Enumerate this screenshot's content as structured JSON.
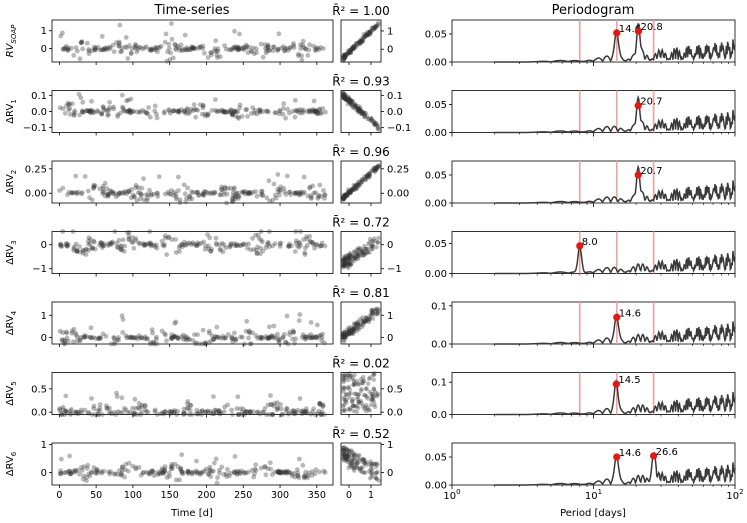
{
  "headers": {
    "timeseries": "Time-series",
    "periodogram": "Periodogram"
  },
  "colors": {
    "points": "#333333",
    "curve": "#3a3a3a",
    "peak": "#e8160f",
    "vline": "#f4a0a0"
  },
  "chart_data": {
    "type": "scatter",
    "time_axis": {
      "label": "Time [d]",
      "ticks": [
        0,
        50,
        100,
        150,
        200,
        250,
        300,
        350
      ],
      "range": [
        -10,
        372
      ]
    },
    "corr_axis": {
      "label": "RV_SOAP",
      "ticks": [
        0,
        1
      ]
    },
    "period_axis": {
      "label": "Period [days]",
      "scale": "log",
      "range": [
        1,
        100
      ],
      "ticks": [
        "10^0",
        "10^1",
        "10^2"
      ]
    },
    "reference_periods": [
      8.0,
      14.6,
      26.6
    ],
    "rows": [
      {
        "ylabel_main": "RV",
        "ylabel_sub": "SOAP",
        "ylabel_italic": true,
        "r2_label": "R̄² = 1.00",
        "ts_ylim": [
          -0.75,
          1.6
        ],
        "ts_ticks": [
          "-0",
          "1"
        ],
        "ts_tickvals": [
          0,
          1
        ],
        "ts_ticklabels": [
          "0",
          "1"
        ],
        "amp": 0.55,
        "corr": 1.0,
        "corr_ticks": [
          1,
          0
        ],
        "corr_ticklabels": [
          "1",
          "0"
        ],
        "corr_ylim": [
          -0.7,
          1.6
        ],
        "pg_ylim": [
          0,
          0.075
        ],
        "pg_ticks": [
          0.0,
          0.025,
          0.05
        ],
        "pg_ticklabels": [
          "0.00",
          "0.05"
        ],
        "pg_tickvals2": [
          0.0,
          0.05
        ],
        "peaks": [
          {
            "period": 14.6,
            "power": 0.052,
            "label": "14.6"
          },
          {
            "period": 20.8,
            "power": 0.055,
            "label": "20.8"
          }
        ]
      },
      {
        "ylabel_main": "ΔRV",
        "ylabel_sub": "1",
        "ylabel_italic": false,
        "r2_label": "R̄² = 0.93",
        "ts_tickvals": [
          0.1,
          0.0,
          -0.1
        ],
        "ts_ticklabels": [
          "0.1",
          "0.0",
          "−0.1"
        ],
        "ts_ylim": [
          -0.13,
          0.13
        ],
        "amp": 0.045,
        "corr": -0.93,
        "corr_ticks": [
          0.1,
          0.0,
          -0.1
        ],
        "corr_ticklabels": [
          "0.1",
          "0.0",
          "−0.1"
        ],
        "corr_ylim": [
          -0.13,
          0.13
        ],
        "pg_ylim": [
          0,
          0.075
        ],
        "pg_tickvals2": [
          0.0,
          0.05
        ],
        "pg_ticklabels": [
          "0.00",
          "0.05"
        ],
        "peaks": [
          {
            "period": 20.7,
            "power": 0.048,
            "label": "20.7"
          }
        ]
      },
      {
        "ylabel_main": "ΔRV",
        "ylabel_sub": "2",
        "ylabel_italic": false,
        "r2_label": "R̄² = 0.96",
        "ts_tickvals": [
          0.25,
          0.0
        ],
        "ts_ticklabels": [
          "0.25",
          "0.00"
        ],
        "ts_ylim": [
          -0.1,
          0.33
        ],
        "amp": 0.09,
        "corr": 0.96,
        "corr_ticks": [
          0.25,
          0.0
        ],
        "corr_ticklabels": [
          "0.25",
          "0.00"
        ],
        "corr_ylim": [
          -0.1,
          0.33
        ],
        "pg_ylim": [
          0,
          0.075
        ],
        "pg_tickvals2": [
          0.0,
          0.05
        ],
        "pg_ticklabels": [
          "0.00",
          "0.05"
        ],
        "peaks": [
          {
            "period": 20.7,
            "power": 0.05,
            "label": "20.7"
          }
        ]
      },
      {
        "ylabel_main": "ΔRV",
        "ylabel_sub": "3",
        "ylabel_italic": false,
        "r2_label": "R̄² = 0.72",
        "ts_tickvals": [
          0,
          -1
        ],
        "ts_ticklabels": [
          "0",
          "−1"
        ],
        "ts_ylim": [
          -1.2,
          0.55
        ],
        "amp": 0.4,
        "corr": 0.72,
        "corr_ticks": [
          0,
          -1
        ],
        "corr_ticklabels": [
          "0",
          "−1"
        ],
        "corr_ylim": [
          -1.2,
          0.55
        ],
        "pg_ylim": [
          0,
          0.07
        ],
        "pg_tickvals2": [
          0.0,
          0.05
        ],
        "pg_ticklabels": [
          "0.00",
          "0.05"
        ],
        "peaks": [
          {
            "period": 8.0,
            "power": 0.046,
            "label": "8.0"
          }
        ]
      },
      {
        "ylabel_main": "ΔRV",
        "ylabel_sub": "4",
        "ylabel_italic": false,
        "r2_label": "R̄² = 0.81",
        "ts_tickvals": [
          1,
          0
        ],
        "ts_ticklabels": [
          "1",
          "0"
        ],
        "ts_ylim": [
          -0.3,
          1.6
        ],
        "amp": 0.4,
        "corr": 0.81,
        "corr_ticks": [
          1,
          0
        ],
        "corr_ticklabels": [
          "1",
          "0"
        ],
        "corr_ylim": [
          -0.3,
          1.6
        ],
        "pg_ylim": [
          0,
          0.11
        ],
        "pg_tickvals2": [
          0.0,
          0.1
        ],
        "pg_ticklabels": [
          "0.0",
          "0.1"
        ],
        "peaks": [
          {
            "period": 14.6,
            "power": 0.07,
            "label": "14.6"
          }
        ]
      },
      {
        "ylabel_main": "ΔRV",
        "ylabel_sub": "5",
        "ylabel_italic": false,
        "r2_label": "R̄² = 0.02",
        "ts_tickvals": [
          0.5,
          0.0
        ],
        "ts_ticklabels": [
          "0.5",
          "0.0"
        ],
        "ts_ylim": [
          -0.05,
          0.85
        ],
        "amp": 0.2,
        "corr": 0.02,
        "corr_ticks": [
          0.5,
          0.0
        ],
        "corr_ticklabels": [
          "0.5",
          "0.0"
        ],
        "corr_ylim": [
          -0.05,
          0.85
        ],
        "pg_ylim": [
          0,
          0.13
        ],
        "pg_tickvals2": [
          0.0,
          0.1
        ],
        "pg_ticklabels": [
          "0.0",
          "0.1"
        ],
        "peaks": [
          {
            "period": 14.5,
            "power": 0.094,
            "label": "14.5"
          }
        ]
      },
      {
        "ylabel_main": "ΔRV",
        "ylabel_sub": "6",
        "ylabel_italic": false,
        "r2_label": "R̄² = 0.52",
        "ts_tickvals": [
          1,
          0
        ],
        "ts_ticklabels": [
          "1",
          "0"
        ],
        "ts_ylim": [
          -0.45,
          1.05
        ],
        "amp": 0.3,
        "corr": -0.52,
        "corr_ticks": [
          1,
          0
        ],
        "corr_ticklabels": [
          "1",
          "0"
        ],
        "corr_ylim": [
          -0.45,
          1.05
        ],
        "pg_ylim": [
          0,
          0.075
        ],
        "pg_tickvals2": [
          0.0,
          0.05
        ],
        "pg_ticklabels": [
          "0.00",
          "0.05"
        ],
        "peaks": [
          {
            "period": 14.6,
            "power": 0.05,
            "label": "14.6"
          },
          {
            "period": 26.6,
            "power": 0.052,
            "label": "26.6"
          }
        ]
      }
    ]
  }
}
